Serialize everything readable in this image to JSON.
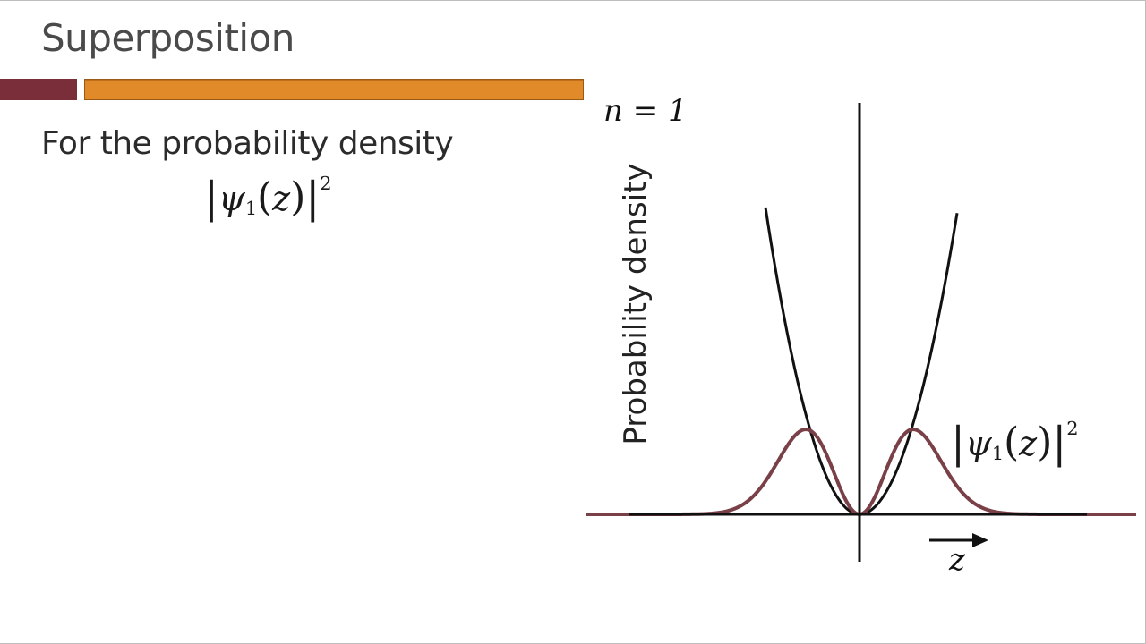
{
  "slide": {
    "title": "Superposition",
    "body_text": "For the probability density",
    "formula": {
      "symbol": "ψ",
      "subscript": "1",
      "variable": "z",
      "exponent": "2"
    }
  },
  "diagram": {
    "state_label": "n = 1",
    "ylabel": "Probability density",
    "xlabel": "z",
    "curve_label": {
      "symbol": "ψ",
      "subscript": "1",
      "variable": "z",
      "exponent": "2"
    }
  },
  "colors": {
    "accent_maroon": "#7a2e3a",
    "accent_orange": "#e08a2a",
    "density_curve": "#7a4048",
    "axis": "#111111"
  }
}
